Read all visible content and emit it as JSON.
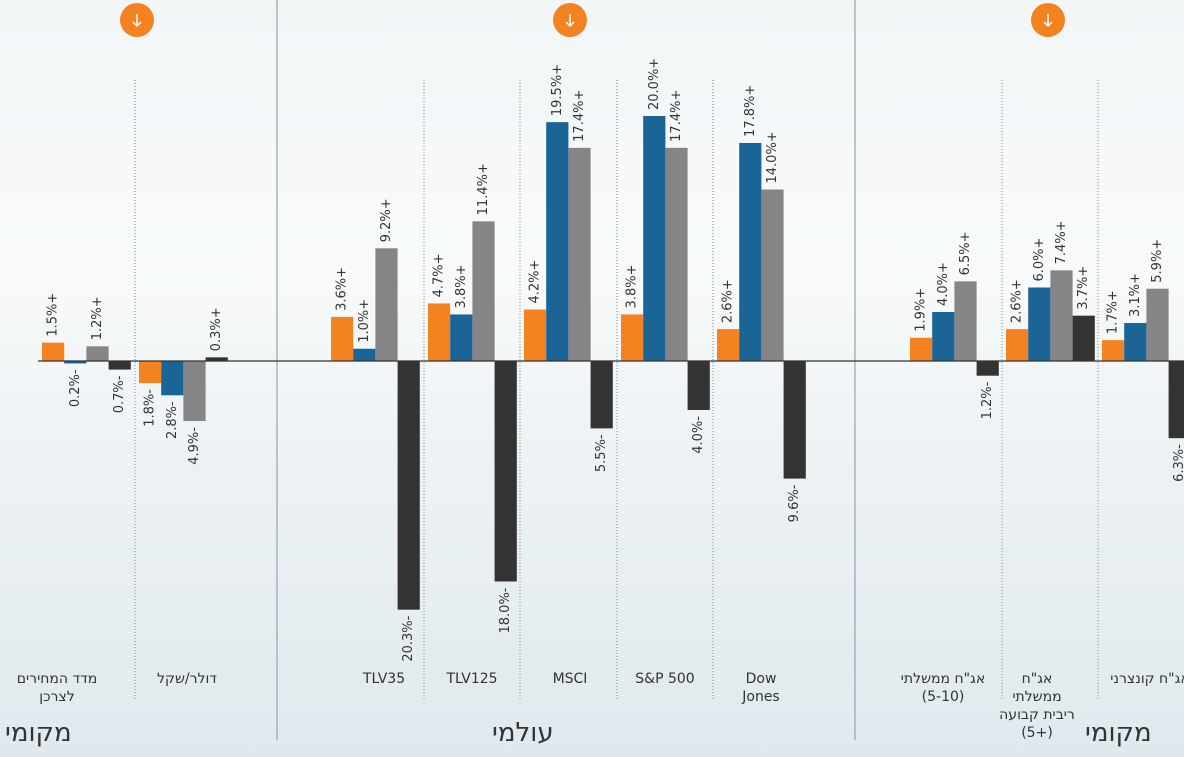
{
  "chart_data": {
    "type": "bar",
    "categories": [
      "מדד המחירים\nלצרכן",
      "דולר/שקל",
      "TLV35",
      "TLV125",
      "MSCI",
      "S&P 500",
      "Dow\nJones",
      "אג\"ח ממשלתי\n(5-10)",
      "אג\"ח\nממשלתי\nריבית קבועה\n(+5)",
      "אג\"ח קונצרני"
    ],
    "series": [
      {
        "color": "#f58220",
        "values": [
          1.5,
          -1.8,
          3.6,
          4.7,
          4.2,
          3.8,
          2.6,
          1.9,
          2.6,
          1.7
        ],
        "value_labels": [
          "1.5%+",
          "1.8%-",
          "3.6%+",
          "4.7%+",
          "4.2%+",
          "3.8%+",
          "2.6%+",
          "1.9%+",
          "2.6%+",
          "1.7%+"
        ]
      },
      {
        "color": "#1a6496",
        "values": [
          -0.2,
          -2.8,
          1.0,
          3.8,
          19.5,
          20.0,
          17.8,
          4.0,
          6.0,
          3.1
        ],
        "value_labels": [
          "0.2%-",
          "2.8%-",
          "1.0%+",
          "3.8%+",
          "19.5%+",
          "20.0%+",
          "17.8%+",
          "4.0%+",
          "6.0%+",
          "3.1%+"
        ]
      },
      {
        "color": "#858487",
        "values": [
          1.2,
          -4.9,
          9.2,
          11.4,
          17.4,
          17.4,
          14.0,
          6.5,
          7.4,
          5.9
        ],
        "value_labels": [
          "1.2%+",
          "4.9%-",
          "9.2%+",
          "11.4%+",
          "17.4%+",
          "17.4%+",
          "14.0%+",
          "6.5%+",
          "7.4%+",
          "5.9%+"
        ]
      },
      {
        "color": "#333333",
        "values": [
          -0.7,
          0.3,
          -20.3,
          -18.0,
          -5.5,
          -4.0,
          -9.6,
          -1.2,
          3.7,
          -6.3
        ],
        "value_labels": [
          "0.7%-",
          "0.3%+",
          "20.3%-",
          "18.0%-",
          "5.5%-",
          "4.0%-",
          "9.6%-",
          "1.2%-",
          "3.7%+",
          "6.3%-"
        ]
      }
    ],
    "groups": [
      "מקומי",
      "עולמי",
      "מקומי"
    ]
  }
}
